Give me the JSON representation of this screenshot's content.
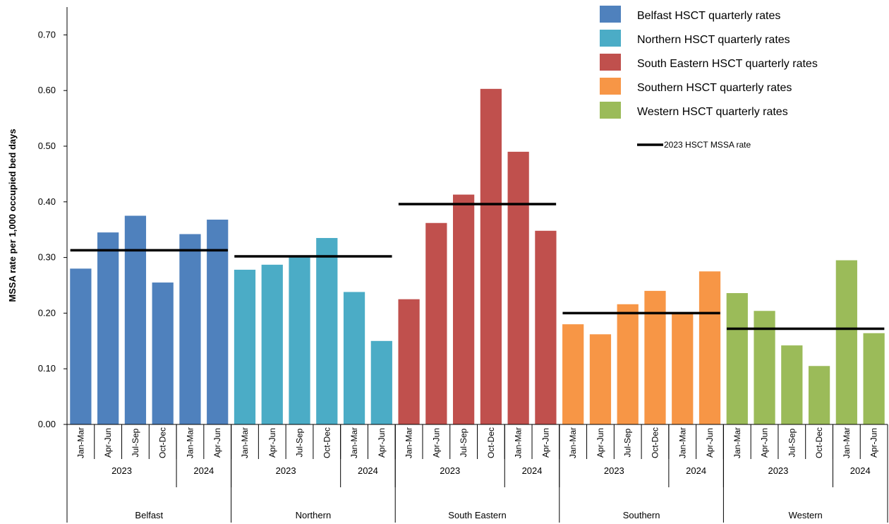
{
  "chart_data": {
    "type": "bar",
    "ylabel": "MSSA rate per 1,000 occupied bed days",
    "ylim": [
      0,
      0.75
    ],
    "yticks": [
      "0.00",
      "0.10",
      "0.20",
      "0.30",
      "0.40",
      "0.50",
      "0.60",
      "0.70"
    ],
    "grid": false,
    "legend_position": "top-right",
    "legend_line_label": "2023 HSCT MSSA rate",
    "groups": [
      {
        "name": "Belfast",
        "legend": "Belfast  HSCT quarterly rates",
        "color": "#4f81bd",
        "years": [
          {
            "label": "2023",
            "count": 4
          },
          {
            "label": "2024",
            "count": 2
          }
        ],
        "categories": [
          "Jan-Mar",
          "Apr-Jun",
          "Jul-Sep",
          "Oct-Dec",
          "Jan-Mar",
          "Apr-Jun"
        ],
        "values": [
          0.28,
          0.345,
          0.375,
          0.255,
          0.342,
          0.368
        ],
        "annual_rate": 0.313
      },
      {
        "name": "Northern",
        "legend": "Northern  HSCT quarterly rates",
        "color": "#4bacc6",
        "years": [
          {
            "label": "2023",
            "count": 4
          },
          {
            "label": "2024",
            "count": 2
          }
        ],
        "categories": [
          "Jan-Mar",
          "Apr-Jun",
          "Jul-Sep",
          "Oct-Dec",
          "Jan-Mar",
          "Apr-Jun"
        ],
        "values": [
          0.278,
          0.287,
          0.3,
          0.335,
          0.238,
          0.15
        ],
        "annual_rate": 0.302
      },
      {
        "name": "South Eastern",
        "legend": "South  Eastern HSCT quarterly rates",
        "color": "#c0504d",
        "years": [
          {
            "label": "2023",
            "count": 4
          },
          {
            "label": "2024",
            "count": 2
          }
        ],
        "categories": [
          "Jan-Mar",
          "Apr-Jun",
          "Jul-Sep",
          "Oct-Dec",
          "Jan-Mar",
          "Apr-Jun"
        ],
        "values": [
          0.225,
          0.362,
          0.413,
          0.603,
          0.49,
          0.348
        ],
        "annual_rate": 0.396
      },
      {
        "name": "Southern",
        "legend": "Southern  HSCT quarterly rates",
        "color": "#f79646",
        "years": [
          {
            "label": "2023",
            "count": 4
          },
          {
            "label": "2024",
            "count": 2
          }
        ],
        "categories": [
          "Jan-Mar",
          "Apr-Jun",
          "Jul-Sep",
          "Oct-Dec",
          "Jan-Mar",
          "Apr-Jun"
        ],
        "values": [
          0.18,
          0.162,
          0.216,
          0.24,
          0.2,
          0.275
        ],
        "annual_rate": 0.2
      },
      {
        "name": "Western",
        "legend": " Western HSCT quarterly rates",
        "color": "#9bbb59",
        "years": [
          {
            "label": "2023",
            "count": 4
          },
          {
            "label": "2024",
            "count": 2
          }
        ],
        "categories": [
          "Jan-Mar",
          "Apr-Jun",
          "Jul-Sep",
          "Oct-Dec",
          "Jan-Mar",
          "Apr-Jun"
        ],
        "values": [
          0.236,
          0.204,
          0.142,
          0.105,
          0.295,
          0.164
        ],
        "annual_rate": 0.172
      }
    ]
  }
}
